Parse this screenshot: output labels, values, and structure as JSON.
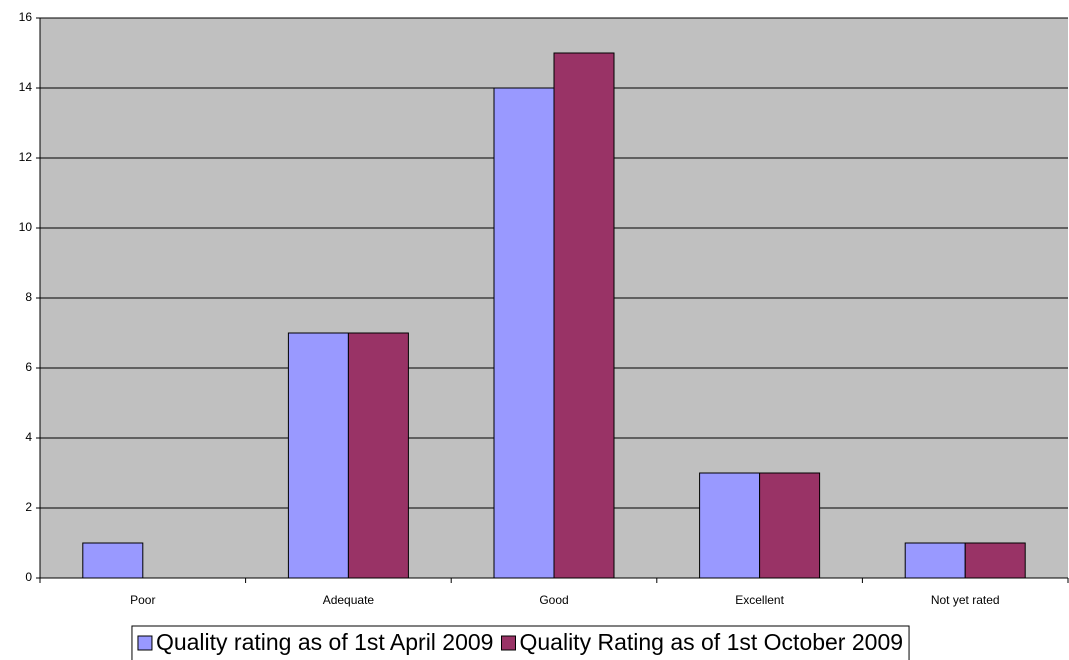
{
  "chart_data": {
    "type": "bar",
    "categories": [
      "Poor",
      "Adequate",
      "Good",
      "Excellent",
      "Not yet rated"
    ],
    "series": [
      {
        "name": "Quality rating as of 1st April 2009",
        "color": "#9999ff",
        "values": [
          1,
          7,
          14,
          3,
          1
        ]
      },
      {
        "name": "Quality Rating as of 1st October 2009",
        "color": "#993366",
        "values": [
          0,
          7,
          15,
          3,
          1
        ]
      }
    ],
    "ylim": [
      0,
      16
    ],
    "yticks": [
      0,
      2,
      4,
      6,
      8,
      10,
      12,
      14,
      16
    ],
    "grid": true,
    "legend": "bottom"
  }
}
